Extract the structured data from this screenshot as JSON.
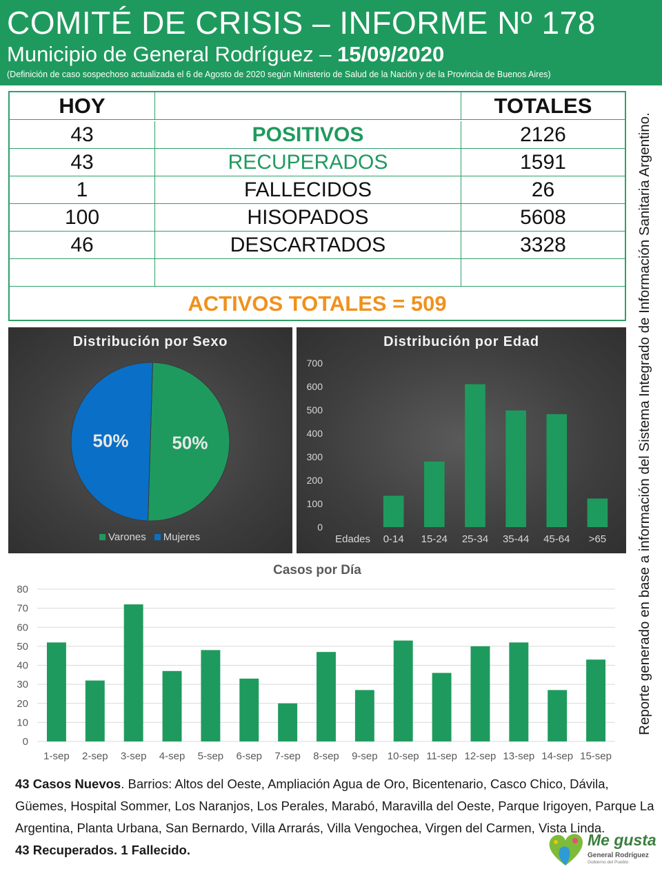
{
  "header": {
    "title": "COMITÉ DE CRISIS – INFORME Nº 178",
    "subtitle_prefix": "Municipio de General Rodríguez – ",
    "date": "15/09/2020",
    "note": "(Definición de caso sospechoso actualizada el 6 de Agosto de 2020 según Ministerio de Salud de la Nación y de la Provincia de Buenos Aires)"
  },
  "stats": {
    "header_today": "HOY",
    "header_totals": "TOTALES",
    "rows": [
      {
        "today": "43",
        "label": "POSITIVOS",
        "total": "2126"
      },
      {
        "today": "43",
        "label": "RECUPERADOS",
        "total": "1591"
      },
      {
        "today": "1",
        "label": "FALLECIDOS",
        "total": "26"
      },
      {
        "today": "100",
        "label": "HISOPADOS",
        "total": "5608"
      },
      {
        "today": "46",
        "label": "DESCARTADOS",
        "total": "3328"
      }
    ],
    "activos": "ACTIVOS TOTALES = 509"
  },
  "chart_data": [
    {
      "type": "pie",
      "title": "Distribución por Sexo",
      "labels": [
        "Varones",
        "Mujeres"
      ],
      "values": [
        50,
        50
      ],
      "data_labels": [
        "50%",
        "50%"
      ],
      "colors": [
        "#1f9a5e",
        "#0a6fc6"
      ],
      "legend": "bottom"
    },
    {
      "type": "bar",
      "title": "Distribución por Edad",
      "categories": [
        "Edades",
        "0-14",
        "15-24",
        "25-34",
        "35-44",
        "45-64",
        ">65"
      ],
      "values": [
        0,
        134,
        280,
        610,
        498,
        482,
        122
      ],
      "ylim": [
        0,
        700
      ],
      "yticks": [
        0,
        100,
        200,
        300,
        400,
        500,
        600,
        700
      ],
      "color": "#1f9a5e",
      "grid": false
    },
    {
      "type": "bar",
      "title": "Casos por Día",
      "categories": [
        "1-sep",
        "2-sep",
        "3-sep",
        "4-sep",
        "5-sep",
        "6-sep",
        "7-sep",
        "8-sep",
        "9-sep",
        "10-sep",
        "11-sep",
        "12-sep",
        "13-sep",
        "14-sep",
        "15-sep"
      ],
      "values": [
        52,
        32,
        72,
        37,
        48,
        33,
        20,
        47,
        27,
        53,
        36,
        50,
        52,
        27,
        43
      ],
      "ylim": [
        0,
        80
      ],
      "yticks": [
        0,
        10,
        20,
        30,
        40,
        50,
        60,
        70,
        80
      ],
      "color": "#1f9a5e",
      "grid": true
    }
  ],
  "sidebar_note": "Reporte generado en base a información del Sistema Integrado de Información Sanitaria Argentino.",
  "bottom": {
    "new_cases_bold": "43 Casos Nuevos",
    "new_cases_text": ". Barrios: Altos del Oeste, Ampliación Agua de Oro, Bicentenario, Casco Chico, Dávila, Güemes, Hospital Sommer, Los Naranjos, Los Perales, Marabó, Maravilla del Oeste, Parque Irigoyen, Parque La Argentina, Planta Urbana, San Bernardo, Villa Arrarás, Villa Vengochea, Virgen del Carmen, Vista Linda.",
    "recovered_line": "43 Recuperados. 1 Fallecido."
  },
  "logo": {
    "text": "Me gusta",
    "sub": "General Rodríguez",
    "sub2": "Gobierno del Pueblo"
  }
}
